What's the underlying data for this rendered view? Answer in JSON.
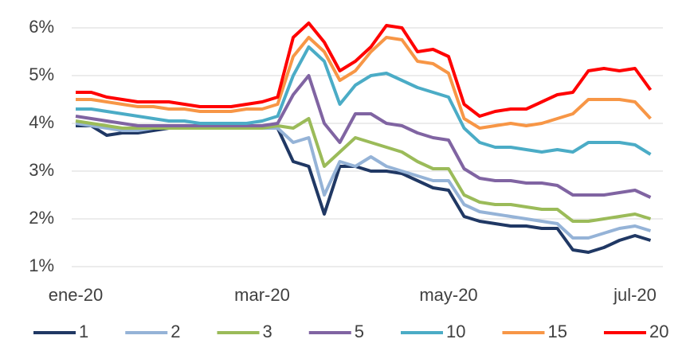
{
  "chart_data": {
    "type": "line",
    "categories": [
      "ene-20",
      null,
      null,
      null,
      null,
      null,
      null,
      null,
      null,
      null,
      null,
      null,
      "mar-20",
      null,
      null,
      null,
      null,
      null,
      null,
      null,
      null,
      null,
      null,
      null,
      "may-20",
      null,
      null,
      null,
      null,
      null,
      null,
      null,
      null,
      null,
      null,
      null,
      "jul-20",
      null
    ],
    "ylim": [
      1,
      6
    ],
    "yticks": [
      {
        "value": 1,
        "label": "1%"
      },
      {
        "value": 2,
        "label": "2%"
      },
      {
        "value": 3,
        "label": "3%"
      },
      {
        "value": 4,
        "label": "4%"
      },
      {
        "value": 5,
        "label": "5%"
      },
      {
        "value": 6,
        "label": "6%"
      }
    ],
    "grid": true,
    "legend": "bottom",
    "series": [
      {
        "name": "1",
        "color": "#203864",
        "values": [
          3.95,
          3.95,
          3.75,
          3.8,
          3.8,
          3.85,
          3.9,
          3.9,
          3.9,
          3.9,
          3.9,
          3.9,
          3.9,
          3.9,
          3.2,
          3.1,
          2.1,
          3.1,
          3.1,
          3.0,
          3.0,
          2.95,
          2.8,
          2.65,
          2.6,
          2.05,
          1.95,
          1.9,
          1.85,
          1.85,
          1.8,
          1.8,
          1.35,
          1.3,
          1.4,
          1.55,
          1.65,
          1.55
        ]
      },
      {
        "name": "2",
        "color": "#95b3d7",
        "values": [
          4.0,
          3.95,
          3.9,
          3.85,
          3.85,
          3.9,
          3.9,
          3.9,
          3.9,
          3.9,
          3.9,
          3.9,
          3.9,
          3.9,
          3.6,
          3.7,
          2.5,
          3.2,
          3.1,
          3.3,
          3.1,
          3.0,
          2.9,
          2.8,
          2.8,
          2.3,
          2.15,
          2.1,
          2.05,
          2.0,
          1.95,
          1.9,
          1.6,
          1.6,
          1.7,
          1.8,
          1.85,
          1.75
        ]
      },
      {
        "name": "3",
        "color": "#9bbb59",
        "values": [
          4.05,
          4.0,
          3.95,
          3.9,
          3.9,
          3.9,
          3.9,
          3.9,
          3.9,
          3.9,
          3.9,
          3.9,
          3.9,
          3.95,
          3.9,
          4.1,
          3.1,
          3.4,
          3.7,
          3.6,
          3.5,
          3.4,
          3.2,
          3.05,
          3.05,
          2.5,
          2.35,
          2.3,
          2.3,
          2.25,
          2.2,
          2.2,
          1.95,
          1.95,
          2.0,
          2.05,
          2.1,
          2.0
        ]
      },
      {
        "name": "5",
        "color": "#8064a2",
        "values": [
          4.15,
          4.1,
          4.05,
          4.0,
          3.95,
          3.95,
          3.95,
          3.95,
          3.95,
          3.95,
          3.95,
          3.95,
          3.95,
          4.0,
          4.6,
          5.0,
          4.0,
          3.6,
          4.2,
          4.2,
          4.0,
          3.95,
          3.8,
          3.7,
          3.65,
          3.05,
          2.85,
          2.8,
          2.8,
          2.75,
          2.75,
          2.7,
          2.5,
          2.5,
          2.5,
          2.55,
          2.6,
          2.45
        ]
      },
      {
        "name": "10",
        "color": "#4bacc6",
        "values": [
          4.3,
          4.3,
          4.25,
          4.2,
          4.15,
          4.1,
          4.05,
          4.05,
          4.0,
          4.0,
          4.0,
          4.0,
          4.05,
          4.15,
          5.0,
          5.6,
          5.3,
          4.4,
          4.8,
          5.0,
          5.05,
          4.9,
          4.75,
          4.65,
          4.55,
          3.9,
          3.6,
          3.5,
          3.5,
          3.45,
          3.4,
          3.45,
          3.4,
          3.6,
          3.6,
          3.6,
          3.55,
          3.35
        ]
      },
      {
        "name": "15",
        "color": "#f79646",
        "values": [
          4.5,
          4.5,
          4.45,
          4.4,
          4.35,
          4.35,
          4.3,
          4.3,
          4.25,
          4.25,
          4.25,
          4.3,
          4.3,
          4.4,
          5.4,
          5.8,
          5.5,
          4.9,
          5.1,
          5.5,
          5.8,
          5.75,
          5.3,
          5.25,
          5.05,
          4.1,
          3.9,
          3.95,
          4.0,
          3.95,
          4.0,
          4.1,
          4.2,
          4.5,
          4.5,
          4.5,
          4.45,
          4.1
        ]
      },
      {
        "name": "20",
        "color": "#ff0000",
        "values": [
          4.65,
          4.65,
          4.55,
          4.5,
          4.45,
          4.45,
          4.45,
          4.4,
          4.35,
          4.35,
          4.35,
          4.4,
          4.45,
          4.55,
          5.8,
          6.1,
          5.7,
          5.1,
          5.3,
          5.6,
          6.05,
          6.0,
          5.5,
          5.55,
          5.4,
          4.4,
          4.15,
          4.25,
          4.3,
          4.3,
          4.45,
          4.6,
          4.65,
          5.1,
          5.15,
          5.1,
          5.15,
          4.7
        ]
      }
    ]
  }
}
